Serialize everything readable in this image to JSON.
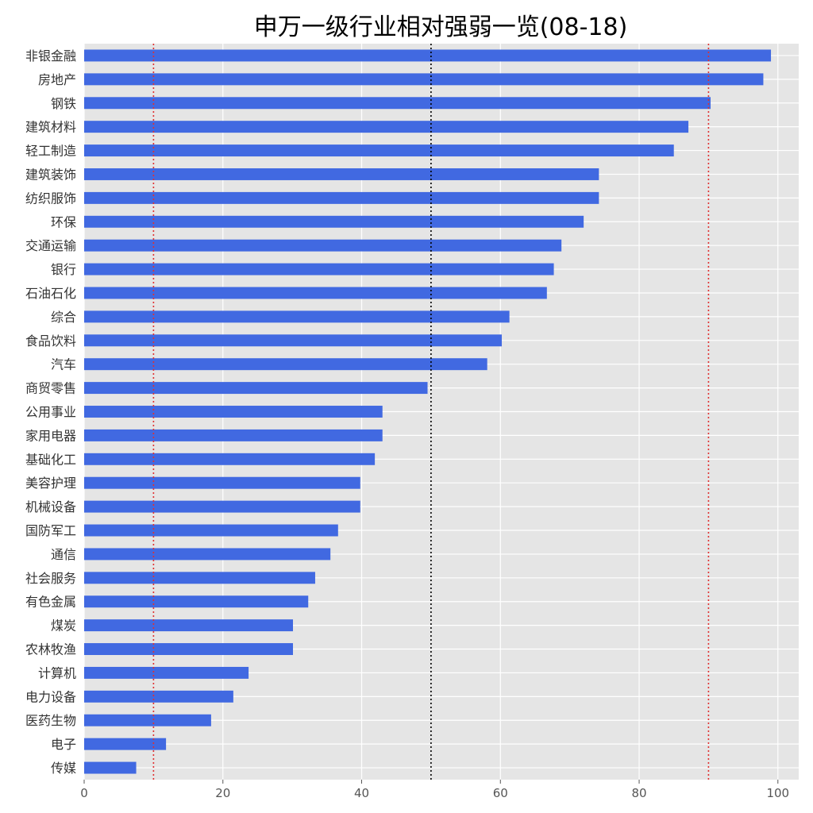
{
  "chart_data": {
    "type": "bar",
    "orientation": "horizontal",
    "title": "申万一级行业相对强弱一览(08-18)",
    "xlabel": "",
    "ylabel": "",
    "xlim": [
      0,
      103
    ],
    "xticks": [
      0,
      20,
      40,
      60,
      80,
      100
    ],
    "grid": true,
    "bar_color": "#4169e1",
    "background_color": "#e5e5e5",
    "reference_lines": [
      {
        "value": 10,
        "color": "#e03030",
        "style": "dotted"
      },
      {
        "value": 50,
        "color": "#000000",
        "style": "dotted"
      },
      {
        "value": 90,
        "color": "#e03030",
        "style": "dotted"
      }
    ],
    "categories": [
      "非银金融",
      "房地产",
      "钢铁",
      "建筑材料",
      "轻工制造",
      "建筑装饰",
      "纺织服饰",
      "环保",
      "交通运输",
      "银行",
      "石油石化",
      "综合",
      "食品饮料",
      "汽车",
      "商贸零售",
      "公用事业",
      "家用电器",
      "基础化工",
      "美容护理",
      "机械设备",
      "国防军工",
      "通信",
      "社会服务",
      "有色金属",
      "煤炭",
      "农林牧渔",
      "计算机",
      "电力设备",
      "医药生物",
      "电子",
      "传媒"
    ],
    "values": [
      99.0,
      97.9,
      90.3,
      87.1,
      85.0,
      74.2,
      74.2,
      72.0,
      68.8,
      67.7,
      66.7,
      61.3,
      60.2,
      58.1,
      49.5,
      43.0,
      43.0,
      41.9,
      39.8,
      39.8,
      36.6,
      35.5,
      33.3,
      32.3,
      30.1,
      30.1,
      23.7,
      21.5,
      18.3,
      11.8,
      7.5
    ]
  }
}
